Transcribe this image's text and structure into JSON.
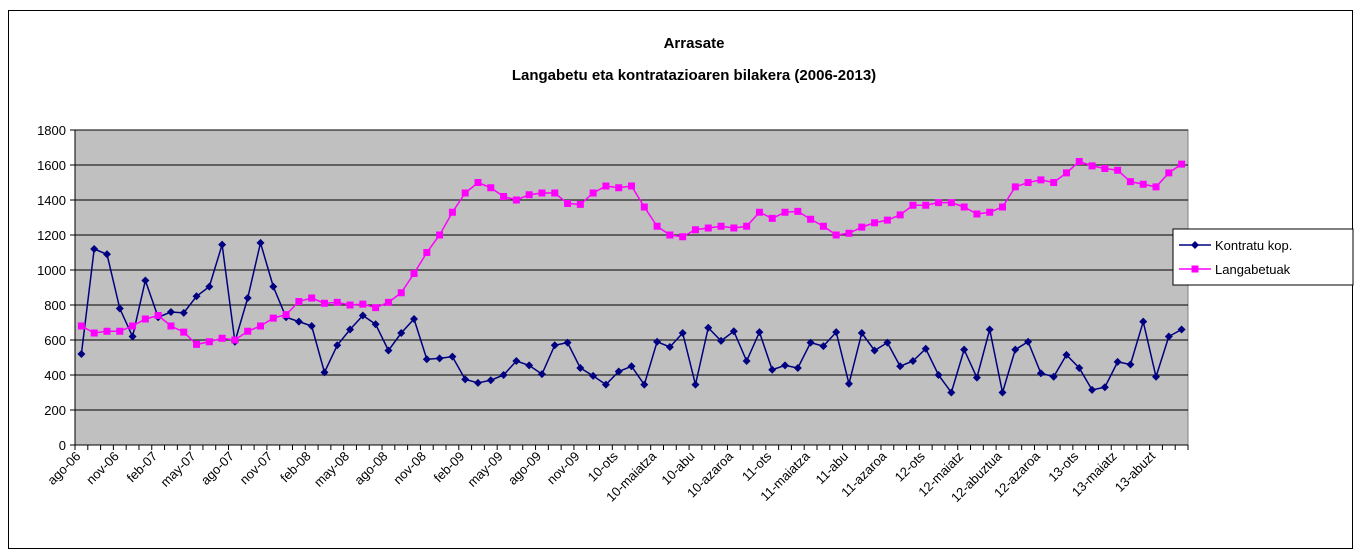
{
  "chart_data": {
    "type": "line",
    "title": "Arrasate",
    "subtitle": "Langabetu eta kontratazioaren bilakera (2006-2013)",
    "categories": [
      "ago-06",
      null,
      null,
      "nov-06",
      null,
      null,
      "feb-07",
      null,
      null,
      "may-07",
      null,
      null,
      "ago-07",
      null,
      null,
      "nov-07",
      null,
      null,
      "feb-08",
      null,
      null,
      "may-08",
      null,
      null,
      "ago-08",
      null,
      null,
      "nov-08",
      null,
      null,
      "feb-09",
      null,
      null,
      "may-09",
      null,
      null,
      "ago-09",
      null,
      null,
      "nov-09",
      null,
      null,
      "10-ots",
      null,
      null,
      "10-maiatza",
      null,
      null,
      "10-abu",
      null,
      null,
      "10-azaroa",
      null,
      null,
      "11-ots",
      null,
      null,
      "11-maiatza",
      null,
      null,
      "11-abu",
      null,
      null,
      "11-azaroa",
      null,
      null,
      "12-ots",
      null,
      null,
      "12-maiatz",
      null,
      null,
      "12-abuztua",
      null,
      null,
      "12-azaroa",
      null,
      null,
      "13-ots",
      null,
      null,
      "13-maiatz",
      null,
      null,
      "13-abuzt",
      null,
      null
    ],
    "series": [
      {
        "name": "Kontratu kop.",
        "color": "#000080",
        "marker": "diamond",
        "values": [
          520,
          1120,
          1090,
          780,
          620,
          940,
          730,
          760,
          755,
          850,
          905,
          1145,
          590,
          840,
          1155,
          905,
          730,
          705,
          680,
          415,
          570,
          660,
          740,
          690,
          540,
          640,
          720,
          490,
          495,
          505,
          375,
          355,
          370,
          400,
          480,
          455,
          405,
          570,
          585,
          440,
          395,
          345,
          420,
          450,
          345,
          590,
          560,
          640,
          345,
          670,
          595,
          650,
          480,
          645,
          430,
          455,
          440,
          585,
          565,
          645,
          350,
          640,
          540,
          585,
          450,
          480,
          550,
          400,
          300,
          545,
          385,
          660,
          300,
          545,
          590,
          410,
          390,
          515,
          440,
          315,
          330,
          475,
          460,
          705,
          390,
          620,
          660
        ]
      },
      {
        "name": "Langabetuak",
        "color": "#ff00ff",
        "marker": "square",
        "values": [
          680,
          640,
          650,
          650,
          680,
          720,
          740,
          680,
          645,
          575,
          590,
          610,
          600,
          650,
          680,
          725,
          745,
          820,
          840,
          810,
          815,
          800,
          805,
          785,
          815,
          870,
          980,
          1100,
          1200,
          1330,
          1440,
          1500,
          1470,
          1420,
          1400,
          1430,
          1440,
          1440,
          1380,
          1375,
          1440,
          1480,
          1470,
          1480,
          1360,
          1250,
          1200,
          1190,
          1230,
          1240,
          1250,
          1240,
          1250,
          1330,
          1295,
          1330,
          1335,
          1290,
          1250,
          1200,
          1210,
          1245,
          1270,
          1285,
          1315,
          1370,
          1370,
          1385,
          1385,
          1360,
          1320,
          1330,
          1360,
          1475,
          1500,
          1515,
          1500,
          1555,
          1620,
          1595,
          1580,
          1570,
          1505,
          1490,
          1475,
          1555,
          1605
        ]
      }
    ],
    "ylim": [
      0,
      1800
    ],
    "yticks": [
      0,
      200,
      400,
      600,
      800,
      1000,
      1200,
      1400,
      1600,
      1800
    ],
    "grid": true,
    "legend": "right",
    "plot_background": "#c0c0c0"
  }
}
